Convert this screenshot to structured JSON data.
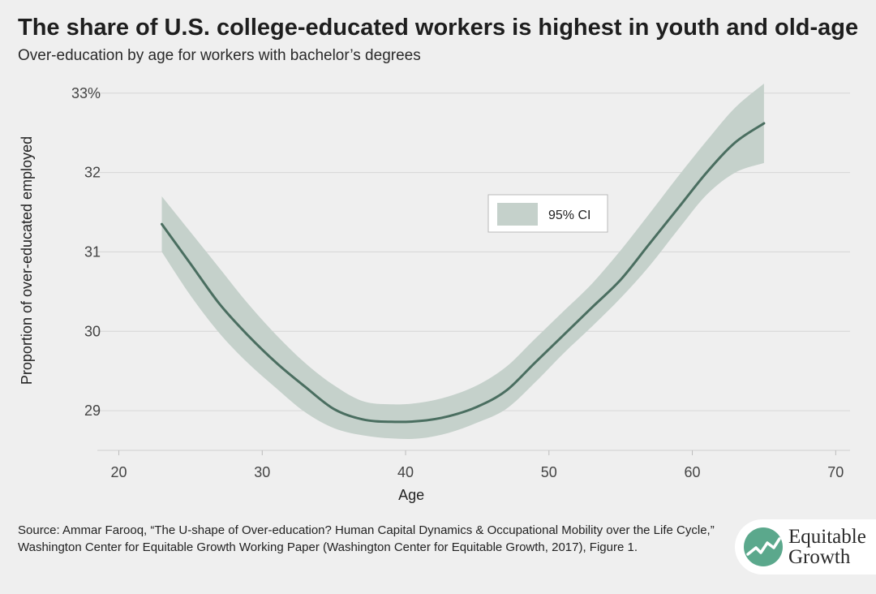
{
  "header": {
    "title": "The share of U.S. college-educated workers is highest in youth and old-age",
    "subtitle": "Over-education by age for workers with bachelor’s degrees"
  },
  "footer": {
    "source": "Source: Ammar Farooq, “The U-shape of Over-education? Human Capital Dynamics & Occupational Mobility over the Life Cycle,” Washington Center for Equitable Growth Working Paper (Washington Center for Equitable Growth, 2017), Figure 1."
  },
  "logo": {
    "line1": "Equitable",
    "line2": "Growth"
  },
  "colors": {
    "line": "#4a6e60",
    "band": "#c5d1cb",
    "grid": "#d6d6d6",
    "background": "#efefef"
  },
  "chart_data": {
    "type": "line",
    "xlabel": "Age",
    "ylabel": "Proportion of over-educated employed",
    "xlim": [
      18.5,
      71
    ],
    "ylim": [
      28.5,
      33.1
    ],
    "x_ticks": [
      20,
      30,
      40,
      50,
      60,
      70
    ],
    "x_tick_labels": [
      "20",
      "30",
      "40",
      "50",
      "60",
      "70"
    ],
    "y_ticks": [
      29,
      30,
      31,
      32,
      33
    ],
    "y_tick_labels": [
      "29",
      "30",
      "31",
      "32",
      "33%"
    ],
    "grid": true,
    "legend": {
      "position": "top-right",
      "entries": [
        "95% CI"
      ]
    },
    "series": [
      {
        "x": [
          23,
          25,
          27,
          29,
          31,
          33,
          35,
          37,
          39,
          41,
          43,
          45,
          47,
          49,
          51,
          53,
          55,
          57,
          59,
          61,
          63,
          65
        ],
        "y": [
          31.35,
          30.85,
          30.35,
          29.95,
          29.6,
          29.3,
          29.02,
          28.89,
          28.86,
          28.87,
          28.93,
          29.05,
          29.25,
          29.6,
          29.95,
          30.3,
          30.65,
          31.1,
          31.55,
          32.0,
          32.38,
          32.62
        ]
      }
    ],
    "ci_band": {
      "name": "95% CI",
      "x": [
        23,
        25,
        27,
        29,
        31,
        33,
        35,
        37,
        39,
        41,
        43,
        45,
        47,
        49,
        51,
        53,
        55,
        57,
        59,
        61,
        63,
        65
      ],
      "lower": [
        31.0,
        30.45,
        29.98,
        29.6,
        29.28,
        28.98,
        28.78,
        28.69,
        28.65,
        28.65,
        28.72,
        28.85,
        29.02,
        29.35,
        29.72,
        30.06,
        30.42,
        30.82,
        31.28,
        31.72,
        32.0,
        32.12
      ],
      "upper": [
        31.7,
        31.25,
        30.8,
        30.35,
        29.95,
        29.6,
        29.32,
        29.12,
        29.08,
        29.1,
        29.18,
        29.32,
        29.55,
        29.9,
        30.25,
        30.6,
        31.02,
        31.48,
        31.95,
        32.4,
        32.82,
        33.12
      ]
    }
  }
}
